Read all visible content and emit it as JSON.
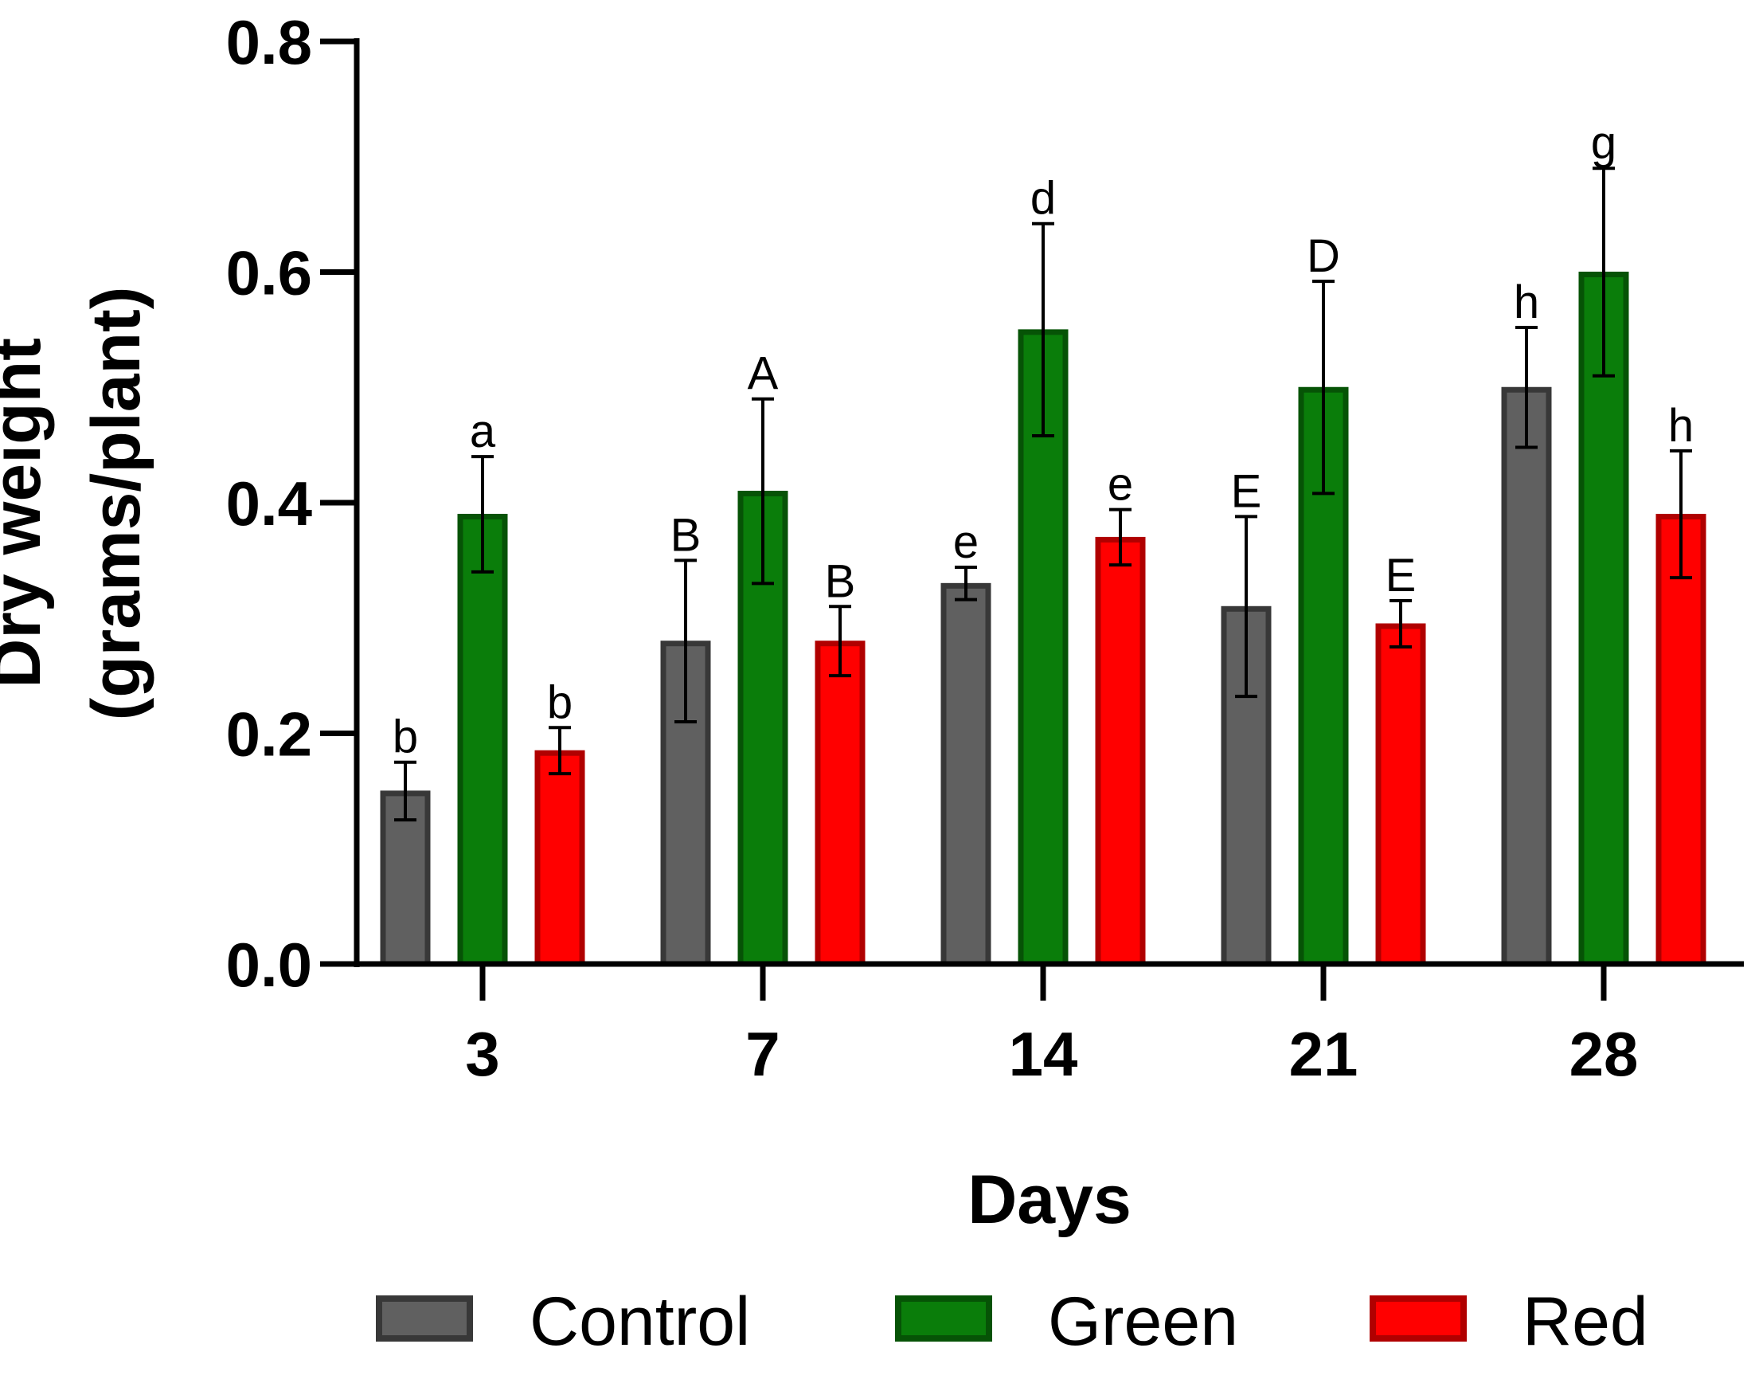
{
  "chart_data": {
    "type": "bar",
    "title": "",
    "xlabel": "Days",
    "ylabel_lines": [
      "Dry weight",
      "(grams/plant)"
    ],
    "ylim": [
      0,
      0.8
    ],
    "yticks": [
      "0.0",
      "0.2",
      "0.4",
      "0.6",
      "0.8"
    ],
    "ytick_values": [
      0,
      0.2,
      0.4,
      0.6,
      0.8
    ],
    "categories": [
      "3",
      "7",
      "14",
      "21",
      "28"
    ],
    "legend_position": "bottom",
    "series": [
      {
        "name": "Control",
        "fill": "#606060",
        "stroke": "#383838",
        "values": [
          0.15,
          0.28,
          0.33,
          0.31,
          0.5
        ],
        "errors": [
          0.025,
          0.07,
          0.014,
          0.078,
          0.052
        ],
        "labels": [
          "b",
          "B",
          "e",
          "E",
          "h"
        ]
      },
      {
        "name": "Green",
        "fill": "#0a7d0a",
        "stroke": "#065306",
        "values": [
          0.39,
          0.41,
          0.55,
          0.5,
          0.6
        ],
        "errors": [
          0.05,
          0.08,
          0.092,
          0.092,
          0.09
        ],
        "labels": [
          "a",
          "A",
          "d",
          "D",
          "g"
        ]
      },
      {
        "name": "Red",
        "fill": "#ff0000",
        "stroke": "#b00000",
        "values": [
          0.185,
          0.28,
          0.37,
          0.295,
          0.39
        ],
        "errors": [
          0.02,
          0.03,
          0.024,
          0.02,
          0.055
        ],
        "labels": [
          "b",
          "B",
          "e",
          "E",
          "h"
        ]
      }
    ]
  }
}
